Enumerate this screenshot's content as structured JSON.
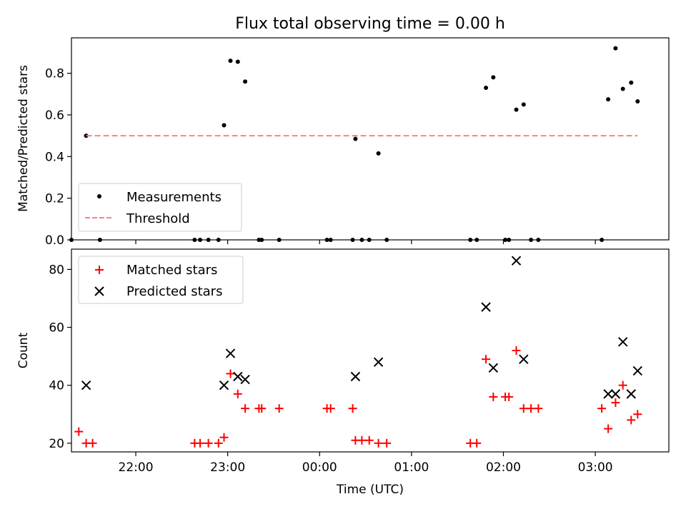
{
  "chart_data": [
    {
      "type": "scatter",
      "title": "Flux total observing time = 0.00 h",
      "xlabel": "",
      "ylabel": "Matched/Predicted stars",
      "xlim": [
        21.3,
        27.8
      ],
      "ylim": [
        0,
        0.97
      ],
      "yticks": [
        0.0,
        0.2,
        0.4,
        0.6,
        0.8
      ],
      "ytick_labels": [
        "0.0",
        "0.2",
        "0.4",
        "0.6",
        "0.8"
      ],
      "xticks": [
        22,
        23,
        24,
        25,
        26,
        27
      ],
      "legend_position": "lower-left",
      "series": [
        {
          "name": "Measurements",
          "marker": "dot",
          "color": "#000000",
          "x": [
            21.3,
            21.46,
            21.61,
            22.64,
            22.7,
            22.79,
            22.9,
            22.96,
            23.03,
            23.11,
            23.19,
            23.34,
            23.37,
            23.56,
            24.08,
            24.12,
            24.36,
            24.39,
            24.46,
            24.54,
            24.64,
            24.73,
            25.64,
            25.71,
            25.81,
            25.89,
            26.02,
            26.06,
            26.14,
            26.22,
            26.3,
            26.38,
            27.07,
            27.14,
            27.22,
            27.3,
            27.39,
            27.46
          ],
          "y": [
            0.0,
            0.5,
            0.0,
            0.0,
            0.0,
            0.0,
            0.0,
            0.55,
            0.86,
            0.855,
            0.76,
            0.0,
            0.0,
            0.0,
            0.0,
            0.0,
            0.0,
            0.485,
            0.0,
            0.0,
            0.415,
            0.0,
            0.0,
            0.0,
            0.73,
            0.78,
            0.0,
            0.0,
            0.625,
            0.65,
            0.0,
            0.0,
            0.0,
            0.675,
            0.92,
            0.725,
            0.755,
            0.665
          ]
        },
        {
          "name": "Threshold",
          "style": "dashed",
          "color": "#ff7f7f",
          "x": [
            21.46,
            27.46
          ],
          "y": [
            0.5,
            0.5
          ]
        }
      ]
    },
    {
      "type": "scatter",
      "title": "",
      "xlabel": "Time (UTC)",
      "ylabel": "Count",
      "xlim": [
        21.3,
        27.8
      ],
      "ylim": [
        17,
        87
      ],
      "yticks": [
        20,
        40,
        60,
        80
      ],
      "ytick_labels": [
        "20",
        "40",
        "60",
        "80"
      ],
      "xticks": [
        22,
        23,
        24,
        25,
        26,
        27
      ],
      "xtick_labels": [
        "22:00",
        "23:00",
        "00:00",
        "01:00",
        "02:00",
        "03:00"
      ],
      "legend_position": "top-left",
      "series": [
        {
          "name": "Matched stars",
          "marker": "plus",
          "color": "#ff0000",
          "x": [
            21.38,
            21.46,
            21.53,
            22.64,
            22.7,
            22.79,
            22.9,
            22.96,
            23.03,
            23.11,
            23.19,
            23.34,
            23.37,
            23.56,
            24.08,
            24.12,
            24.36,
            24.39,
            24.46,
            24.54,
            24.64,
            24.73,
            25.64,
            25.71,
            25.81,
            25.89,
            26.02,
            26.06,
            26.14,
            26.22,
            26.3,
            26.38,
            27.07,
            27.14,
            27.22,
            27.3,
            27.39,
            27.46
          ],
          "y": [
            24,
            20,
            20,
            20,
            20,
            20,
            20,
            22,
            44,
            37,
            32,
            32,
            32,
            32,
            32,
            32,
            32,
            21,
            21,
            21,
            20,
            20,
            20,
            20,
            49,
            36,
            36,
            36,
            52,
            32,
            32,
            32,
            32,
            25,
            34,
            40,
            28,
            30
          ]
        },
        {
          "name": "Predicted stars",
          "marker": "x",
          "color": "#000000",
          "x": [
            21.46,
            22.96,
            23.03,
            23.11,
            23.19,
            24.39,
            24.64,
            25.81,
            25.89,
            26.14,
            26.22,
            27.14,
            27.22,
            27.3,
            27.39,
            27.46
          ],
          "y": [
            40,
            40,
            51,
            43,
            42,
            43,
            48,
            67,
            46,
            83,
            49,
            37,
            37,
            55,
            37,
            45
          ]
        }
      ]
    }
  ]
}
